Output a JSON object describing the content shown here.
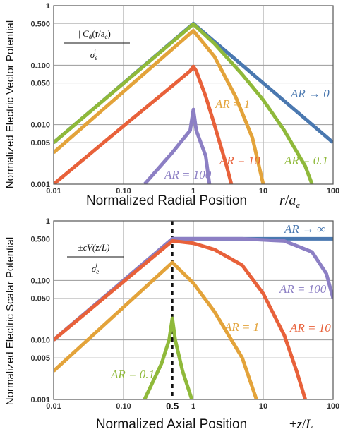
{
  "colors": {
    "blue": "#4a78b0",
    "green": "#8fb93a",
    "orange": "#e3a33a",
    "red": "#e8613a",
    "purple": "#8c7fc4"
  },
  "chart_data": [
    {
      "type": "line",
      "ylabel": "Normalized Electric Vector Potential",
      "xlabel": "Normalized Radial Position",
      "xlabel_math": "r/a_e",
      "xlabel_math_parts": {
        "r": "r",
        "slash": "/",
        "a": "a",
        "sub": "e"
      },
      "legend_fraction": {
        "numerator": "|C_ϕ(r/a_e)|",
        "denominator": "σ_e^i",
        "numerator_parts": {
          "open": "| ",
          "C": "C",
          "phi": "ϕ",
          "arg": "(r/a",
          "e": "e",
          "close": ") |"
        },
        "denominator_parts": {
          "sigma": "σ",
          "e": "e",
          "i": "i"
        }
      },
      "x_scale": "log",
      "y_scale": "log",
      "xlim": [
        0.01,
        100
      ],
      "ylim": [
        0.001,
        1
      ],
      "x_tick_labels": [
        "0.01",
        "0.10",
        "1",
        "10",
        "100"
      ],
      "y_tick_labels": [
        "0.001",
        "0.005",
        "0.010",
        "0.050",
        "0.100",
        "0.500",
        "1"
      ],
      "grid": true,
      "series": [
        {
          "name": "AR → 0",
          "color_key": "blue",
          "points": [
            [
              0.01,
              0.005
            ],
            [
              1,
              0.5
            ],
            [
              2,
              0.25
            ],
            [
              5,
              0.1
            ],
            [
              10,
              0.05
            ],
            [
              30,
              0.0167
            ],
            [
              100,
              0.005
            ]
          ]
        },
        {
          "name": "AR = 0.1",
          "color_key": "green",
          "points": [
            [
              0.01,
              0.005
            ],
            [
              1,
              0.49
            ],
            [
              2,
              0.23
            ],
            [
              5,
              0.07
            ],
            [
              10,
              0.026
            ],
            [
              20,
              0.008
            ],
            [
              40,
              0.002
            ],
            [
              50,
              0.001
            ]
          ]
        },
        {
          "name": "AR = 1",
          "color_key": "orange",
          "points": [
            [
              0.01,
              0.0034
            ],
            [
              1,
              0.38
            ],
            [
              2,
              0.14
            ],
            [
              4,
              0.03
            ],
            [
              7,
              0.006
            ],
            [
              10,
              0.001
            ]
          ]
        },
        {
          "name": "AR = 10",
          "color_key": "red",
          "points": [
            [
              0.01,
              0.001
            ],
            [
              0.1,
              0.0095
            ],
            [
              0.5,
              0.045
            ],
            [
              0.9,
              0.08
            ],
            [
              1,
              0.095
            ],
            [
              1.1,
              0.08
            ],
            [
              1.5,
              0.03
            ],
            [
              2,
              0.01
            ],
            [
              3,
              0.002
            ],
            [
              3.5,
              0.001
            ]
          ]
        },
        {
          "name": "AR = 100",
          "color_key": "purple",
          "points": [
            [
              0.2,
              0.001
            ],
            [
              0.5,
              0.0034
            ],
            [
              0.9,
              0.008
            ],
            [
              1,
              0.018
            ],
            [
              1.1,
              0.008
            ],
            [
              1.5,
              0.003
            ],
            [
              1.7,
              0.001
            ]
          ]
        }
      ],
      "annotations": [
        "AR → 0",
        "AR = 0.1",
        "AR = 1",
        "AR = 10",
        "AR = 100"
      ]
    },
    {
      "type": "line",
      "ylabel": "Normalized Electric Scalar Potential",
      "xlabel": "Normalized Axial Position",
      "xlabel_math": "±z/L",
      "xlabel_math_parts": {
        "pm": "±",
        "z": "z",
        "slash": "/",
        "L": "L"
      },
      "legend_fraction": {
        "numerator": "±εV(z/L)",
        "denominator": "σ_e^i",
        "numerator_parts": {
          "pm": "±",
          "eps": "ϵ",
          "V": "V",
          "arg": "(z/L)"
        },
        "denominator_parts": {
          "sigma": "σ",
          "e": "e",
          "i": "i"
        }
      },
      "x_scale": "log",
      "y_scale": "log",
      "xlim": [
        0.01,
        100
      ],
      "ylim": [
        0.001,
        1
      ],
      "x_tick_labels": [
        "0.01",
        "0.10",
        "1",
        "10",
        "100"
      ],
      "x_extra_tick": {
        "value": 0.5,
        "label": "0.5"
      },
      "y_tick_labels": [
        "0.001",
        "0.005",
        "0.010",
        "0.050",
        "0.100",
        "0.500",
        "1"
      ],
      "vertical_marker": {
        "x": 0.5,
        "style": "dashed"
      },
      "grid": true,
      "series": [
        {
          "name": "AR → ∞",
          "color_key": "blue",
          "points": [
            [
              0.01,
              0.01
            ],
            [
              0.5,
              0.5
            ],
            [
              100,
              0.5
            ]
          ]
        },
        {
          "name": "AR = 100",
          "color_key": "purple",
          "points": [
            [
              0.01,
              0.01
            ],
            [
              0.5,
              0.5
            ],
            [
              5,
              0.5
            ],
            [
              20,
              0.46
            ],
            [
              50,
              0.3
            ],
            [
              80,
              0.13
            ],
            [
              100,
              0.05
            ]
          ]
        },
        {
          "name": "AR = 10",
          "color_key": "red",
          "points": [
            [
              0.01,
              0.01
            ],
            [
              0.5,
              0.46
            ],
            [
              1,
              0.42
            ],
            [
              2,
              0.33
            ],
            [
              5,
              0.18
            ],
            [
              10,
              0.06
            ],
            [
              20,
              0.012
            ],
            [
              30,
              0.003
            ],
            [
              40,
              0.001
            ]
          ]
        },
        {
          "name": "AR = 1",
          "color_key": "orange",
          "points": [
            [
              0.01,
              0.003
            ],
            [
              0.5,
              0.2
            ],
            [
              1,
              0.09
            ],
            [
              2,
              0.03
            ],
            [
              5,
              0.005
            ],
            [
              8,
              0.001
            ]
          ]
        },
        {
          "name": "AR = 0.1",
          "color_key": "green",
          "points": [
            [
              0.2,
              0.001
            ],
            [
              0.35,
              0.004
            ],
            [
              0.45,
              0.01
            ],
            [
              0.5,
              0.023
            ],
            [
              0.55,
              0.01
            ],
            [
              0.7,
              0.003
            ],
            [
              0.95,
              0.001
            ]
          ]
        }
      ],
      "annotations": [
        "AR → ∞",
        "AR = 100",
        "AR = 1",
        "AR = 10",
        "AR = 0.1"
      ]
    }
  ]
}
